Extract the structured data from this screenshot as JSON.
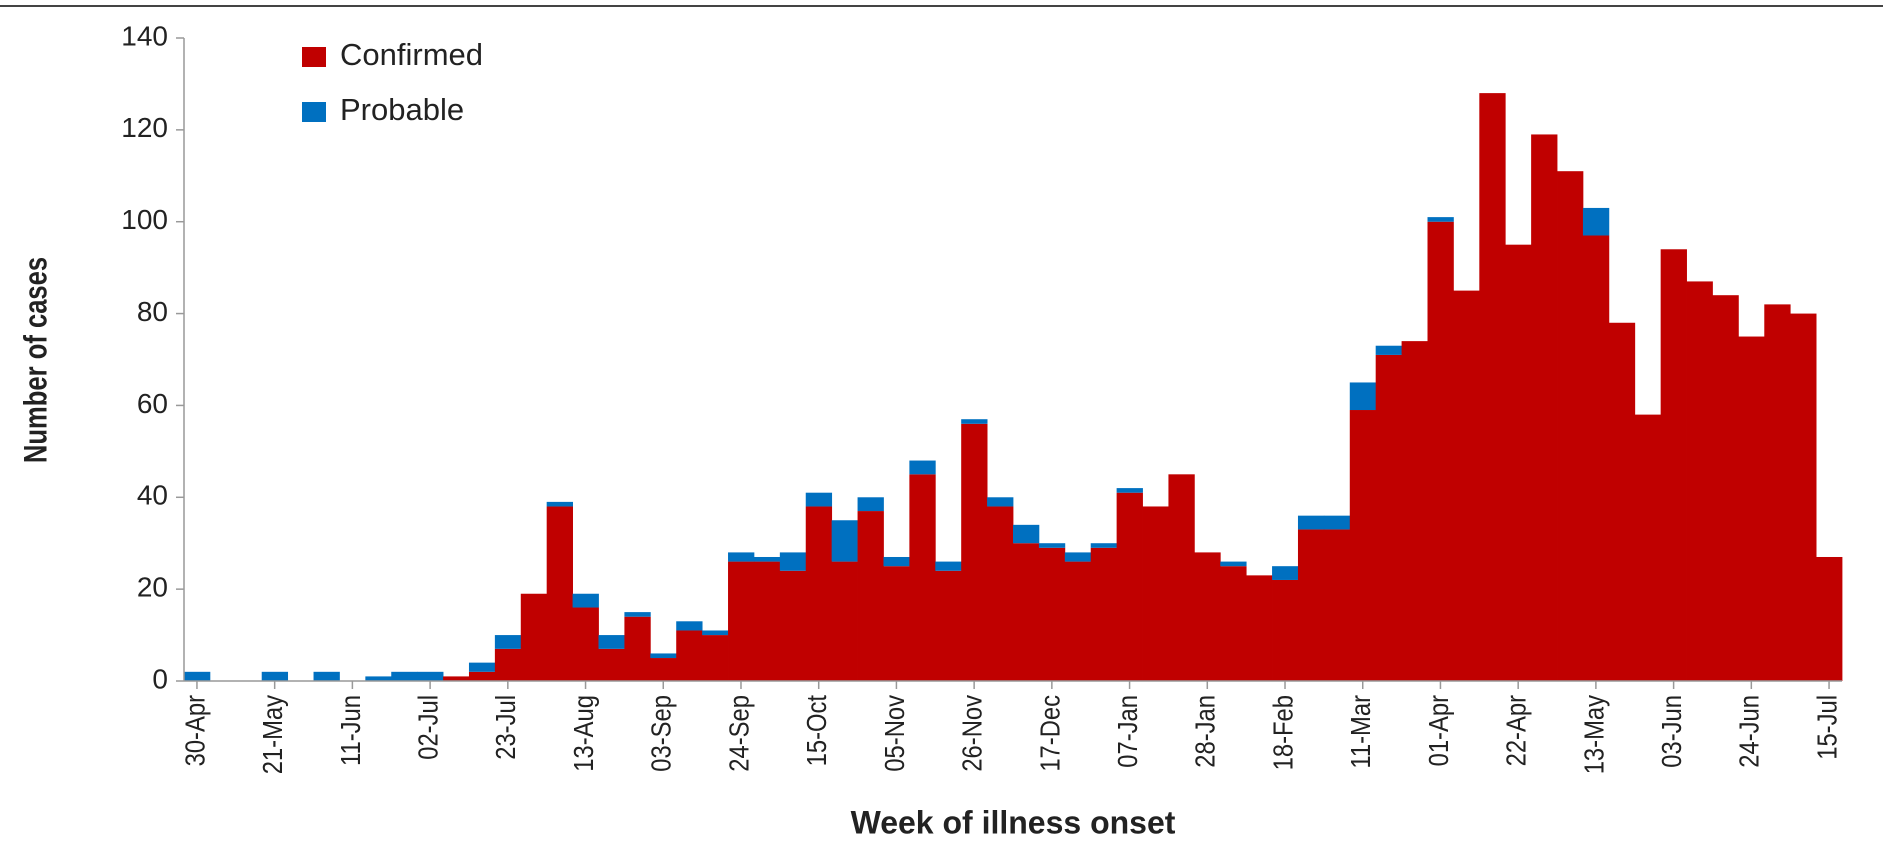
{
  "chart_data": {
    "type": "stacked-bar",
    "x_label": "Week of illness onset",
    "y_label": "Number of cases",
    "categories": [
      "30-Apr",
      null,
      null,
      "21-May",
      null,
      null,
      "11-Jun",
      null,
      null,
      "02-Jul",
      null,
      null,
      "23-Jul",
      null,
      null,
      "13-Aug",
      null,
      null,
      "03-Sep",
      null,
      null,
      "24-Sep",
      null,
      null,
      "15-Oct",
      null,
      null,
      "05-Nov",
      null,
      null,
      "26-Nov",
      null,
      null,
      "17-Dec",
      null,
      null,
      "07-Jan",
      null,
      null,
      "28-Jan",
      null,
      null,
      "18-Feb",
      null,
      null,
      "11-Mar",
      null,
      null,
      "01-Apr",
      null,
      null,
      "22-Apr",
      null,
      null,
      "13-May",
      null,
      null,
      "03-Jun",
      null,
      null,
      "24-Jun",
      null,
      null,
      "15-Jul"
    ],
    "series": [
      {
        "name": "Confirmed",
        "color": "#c00000",
        "values": [
          0,
          0,
          0,
          0,
          0,
          0,
          0,
          0,
          0,
          0,
          1,
          2,
          7,
          19,
          38,
          16,
          7,
          14,
          5,
          11,
          10,
          26,
          26,
          24,
          38,
          26,
          37,
          25,
          45,
          24,
          56,
          38,
          30,
          29,
          26,
          29,
          41,
          38,
          45,
          28,
          25,
          23,
          22,
          33,
          33,
          59,
          71,
          74,
          100,
          85,
          128,
          95,
          119,
          111,
          97,
          78,
          58,
          94,
          87,
          84,
          75,
          82,
          80,
          27
        ]
      },
      {
        "name": "Probable",
        "color": "#0070c0",
        "values": [
          2,
          0,
          0,
          2,
          0,
          2,
          0,
          1,
          2,
          2,
          0,
          2,
          3,
          0,
          1,
          3,
          3,
          1,
          1,
          2,
          1,
          2,
          1,
          4,
          3,
          9,
          3,
          2,
          3,
          2,
          1,
          2,
          4,
          1,
          2,
          1,
          1,
          0,
          0,
          0,
          1,
          0,
          3,
          3,
          3,
          6,
          2,
          0,
          1,
          0,
          0,
          0,
          0,
          0,
          6,
          0,
          0,
          0,
          0,
          0,
          0,
          0,
          0,
          0
        ]
      }
    ],
    "ylim": [
      0,
      140
    ],
    "yticks": [
      0,
      20,
      40,
      60,
      80,
      100,
      120,
      140
    ],
    "grid": false,
    "legend": "top-left"
  }
}
